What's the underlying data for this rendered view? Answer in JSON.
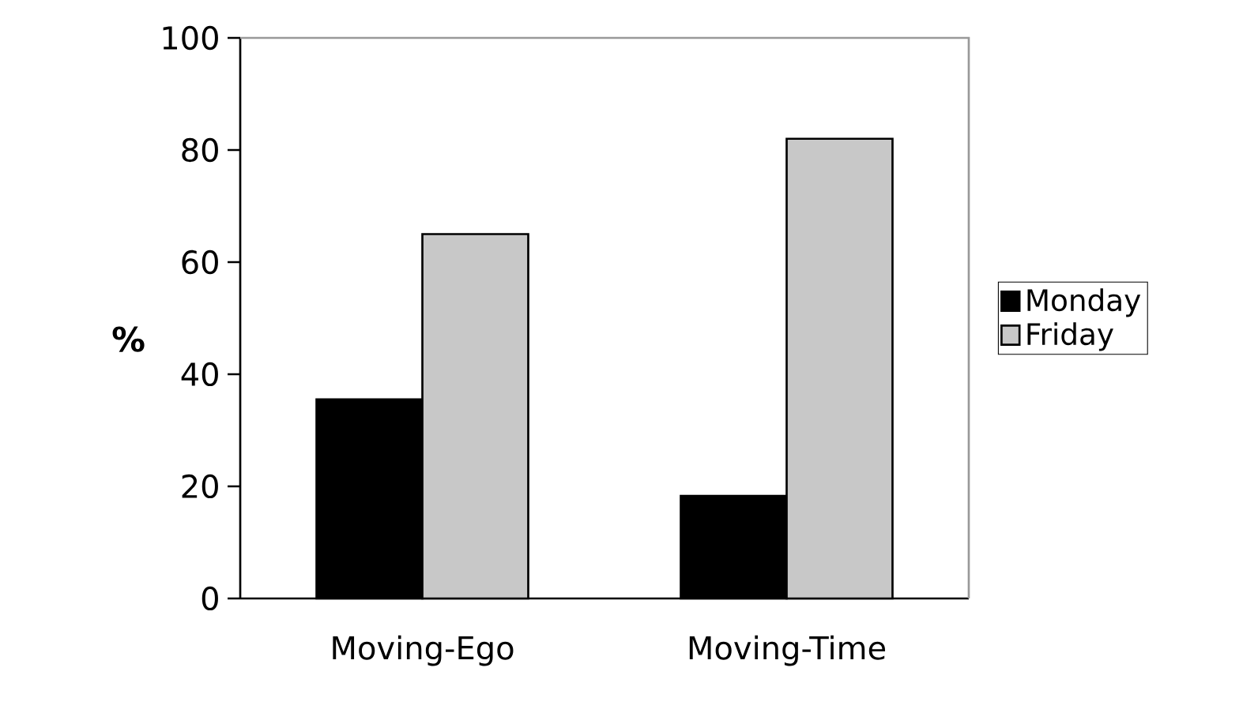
{
  "chart_data": {
    "type": "bar",
    "ylabel": "%",
    "categories": [
      "Moving-Ego",
      "Moving-Time"
    ],
    "series": [
      {
        "name": "Monday",
        "color": "#000000",
        "values": [
          35.5,
          18.3
        ]
      },
      {
        "name": "Friday",
        "color": "#c8c8c8",
        "values": [
          65,
          82
        ]
      }
    ],
    "ylim": [
      0,
      100
    ],
    "yticks": [
      0,
      20,
      40,
      60,
      80,
      100
    ],
    "legend": "right"
  }
}
